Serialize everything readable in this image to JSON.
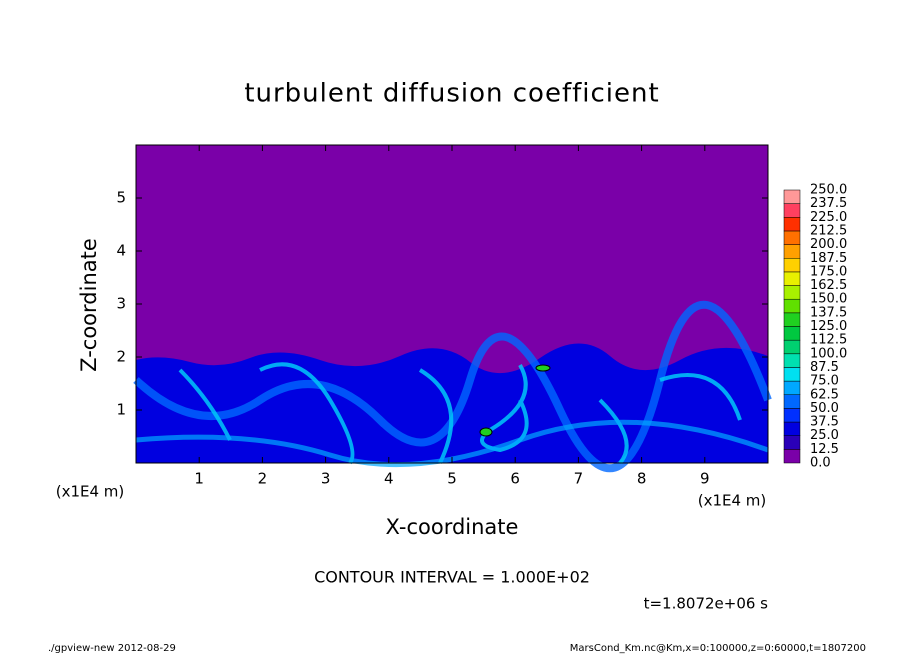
{
  "chart_data": {
    "type": "contour",
    "title": "turbulent diffusion coefficient",
    "xlabel": "X-coordinate",
    "ylabel": "Z-coordinate",
    "x_unit_label": "(x1E4 m)",
    "y_unit_label": "(x1E4 m)",
    "xlim": [
      0,
      10
    ],
    "xticks": [
      1,
      2,
      3,
      4,
      5,
      6,
      7,
      8,
      9
    ],
    "ylim": [
      0,
      6
    ],
    "yticks": [
      1,
      2,
      3,
      4,
      5
    ],
    "colorbar": {
      "levels": [
        {
          "value": 0,
          "label": "0.0"
        },
        {
          "value": 12.5,
          "label": "12.5"
        },
        {
          "value": 25,
          "label": "25.0"
        },
        {
          "value": 37.5,
          "label": "37.5"
        },
        {
          "value": 50,
          "label": "50.0"
        },
        {
          "value": 62.5,
          "label": "62.5"
        },
        {
          "value": 75,
          "label": "75.0"
        },
        {
          "value": 87.5,
          "label": "87.5"
        },
        {
          "value": 100,
          "label": "100.0"
        },
        {
          "value": 112.5,
          "label": "112.5"
        },
        {
          "value": 125,
          "label": "125.0"
        },
        {
          "value": 137.5,
          "label": "137.5"
        },
        {
          "value": 150,
          "label": "150.0"
        },
        {
          "value": 162.5,
          "label": "162.5"
        },
        {
          "value": 175,
          "label": "175.0"
        },
        {
          "value": 187.5,
          "label": "187.5"
        },
        {
          "value": 200,
          "label": "200.0"
        },
        {
          "value": 212.5,
          "label": "212.5"
        },
        {
          "value": 225,
          "label": "225.0"
        },
        {
          "value": 237.5,
          "label": "237.5"
        },
        {
          "value": 250,
          "label": "250.0"
        }
      ],
      "colors": [
        "#7a00a8",
        "#2a00b8",
        "#0000e0",
        "#0030ff",
        "#0068ff",
        "#00a8ff",
        "#00e0f0",
        "#00e0b0",
        "#00d070",
        "#00c840",
        "#20d020",
        "#60e000",
        "#a8f000",
        "#e8f000",
        "#ffd000",
        "#ffa000",
        "#ff7000",
        "#ff3000",
        "#ff4060",
        "#ff9898"
      ]
    },
    "annotations": [
      "CONTOUR INTERVAL = 1.000E+02",
      "t=1.8072e+06 s"
    ],
    "footer_left": "./gpview-new  2012-08-29",
    "footer_right": "MarsCond_Km.nc@Km,x=0:100000,z=0:60000,t=1807200"
  }
}
